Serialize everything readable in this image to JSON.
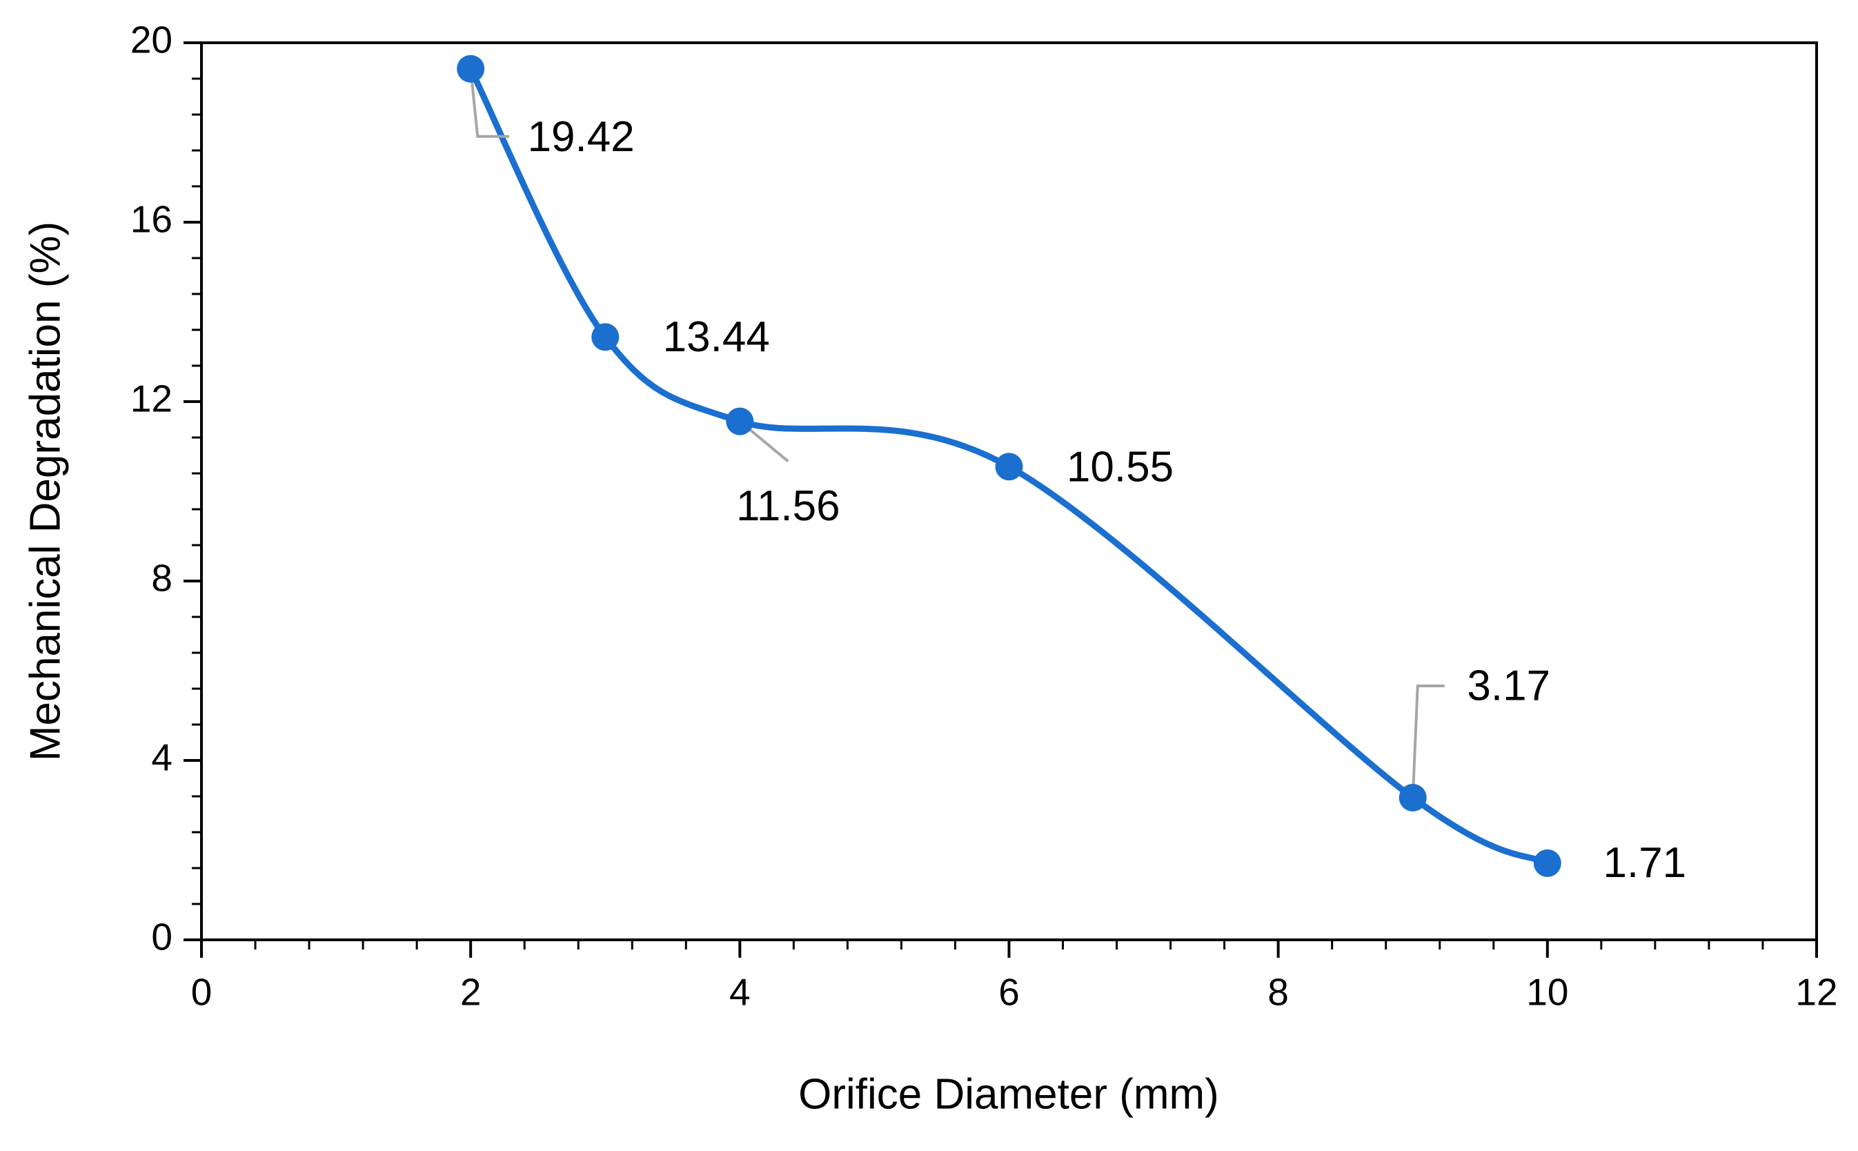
{
  "chart_data": {
    "type": "line",
    "x_label": "Orifice Diameter (mm)",
    "y_label": "Mechanical Degradation (%)",
    "x": [
      2,
      3,
      4,
      6,
      9,
      10
    ],
    "series": [
      {
        "color": "#1a6fcf",
        "values": [
          19.42,
          13.44,
          11.56,
          10.55,
          3.17,
          1.71
        ]
      }
    ],
    "xlim": [
      0,
      12
    ],
    "xticks": [
      0,
      2,
      4,
      6,
      8,
      10,
      12
    ],
    "ylim": [
      0,
      20
    ],
    "yticks": [
      0,
      4,
      8,
      12,
      16,
      20
    ],
    "smooth": true,
    "markers": true,
    "data_labels": true,
    "grid": false
  }
}
